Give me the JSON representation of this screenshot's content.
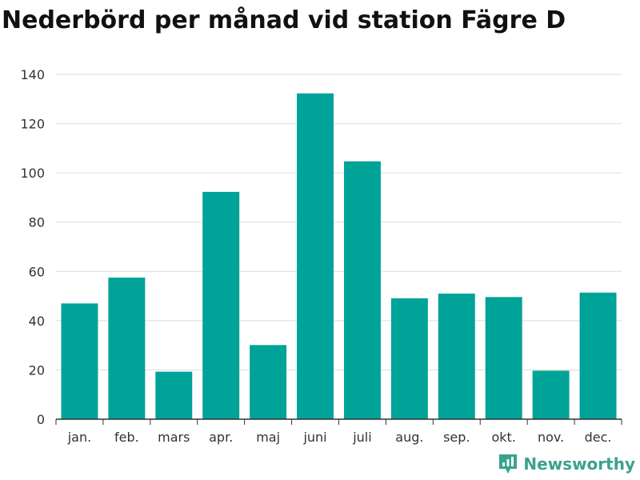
{
  "chart_data": {
    "type": "bar",
    "title": "Nederbörd per månad vid station Fägre D",
    "xlabel": "",
    "ylabel": "",
    "categories": [
      "jan.",
      "feb.",
      "mars",
      "apr.",
      "maj",
      "juni",
      "juli",
      "aug.",
      "sep.",
      "okt.",
      "nov.",
      "dec."
    ],
    "values": [
      47,
      57.5,
      19.3,
      92.3,
      30.1,
      132.3,
      104.7,
      49.1,
      51,
      49.6,
      19.7,
      51.4
    ],
    "ylim": [
      0,
      140
    ],
    "yticks": [
      "0",
      "20",
      "40",
      "60",
      "80",
      "100",
      "120",
      "140"
    ],
    "grid": true,
    "bar_color": "#00a398"
  },
  "brand": {
    "name": "Newsworthy",
    "icon": "bar-chart-icon",
    "color": "#39a28d"
  }
}
